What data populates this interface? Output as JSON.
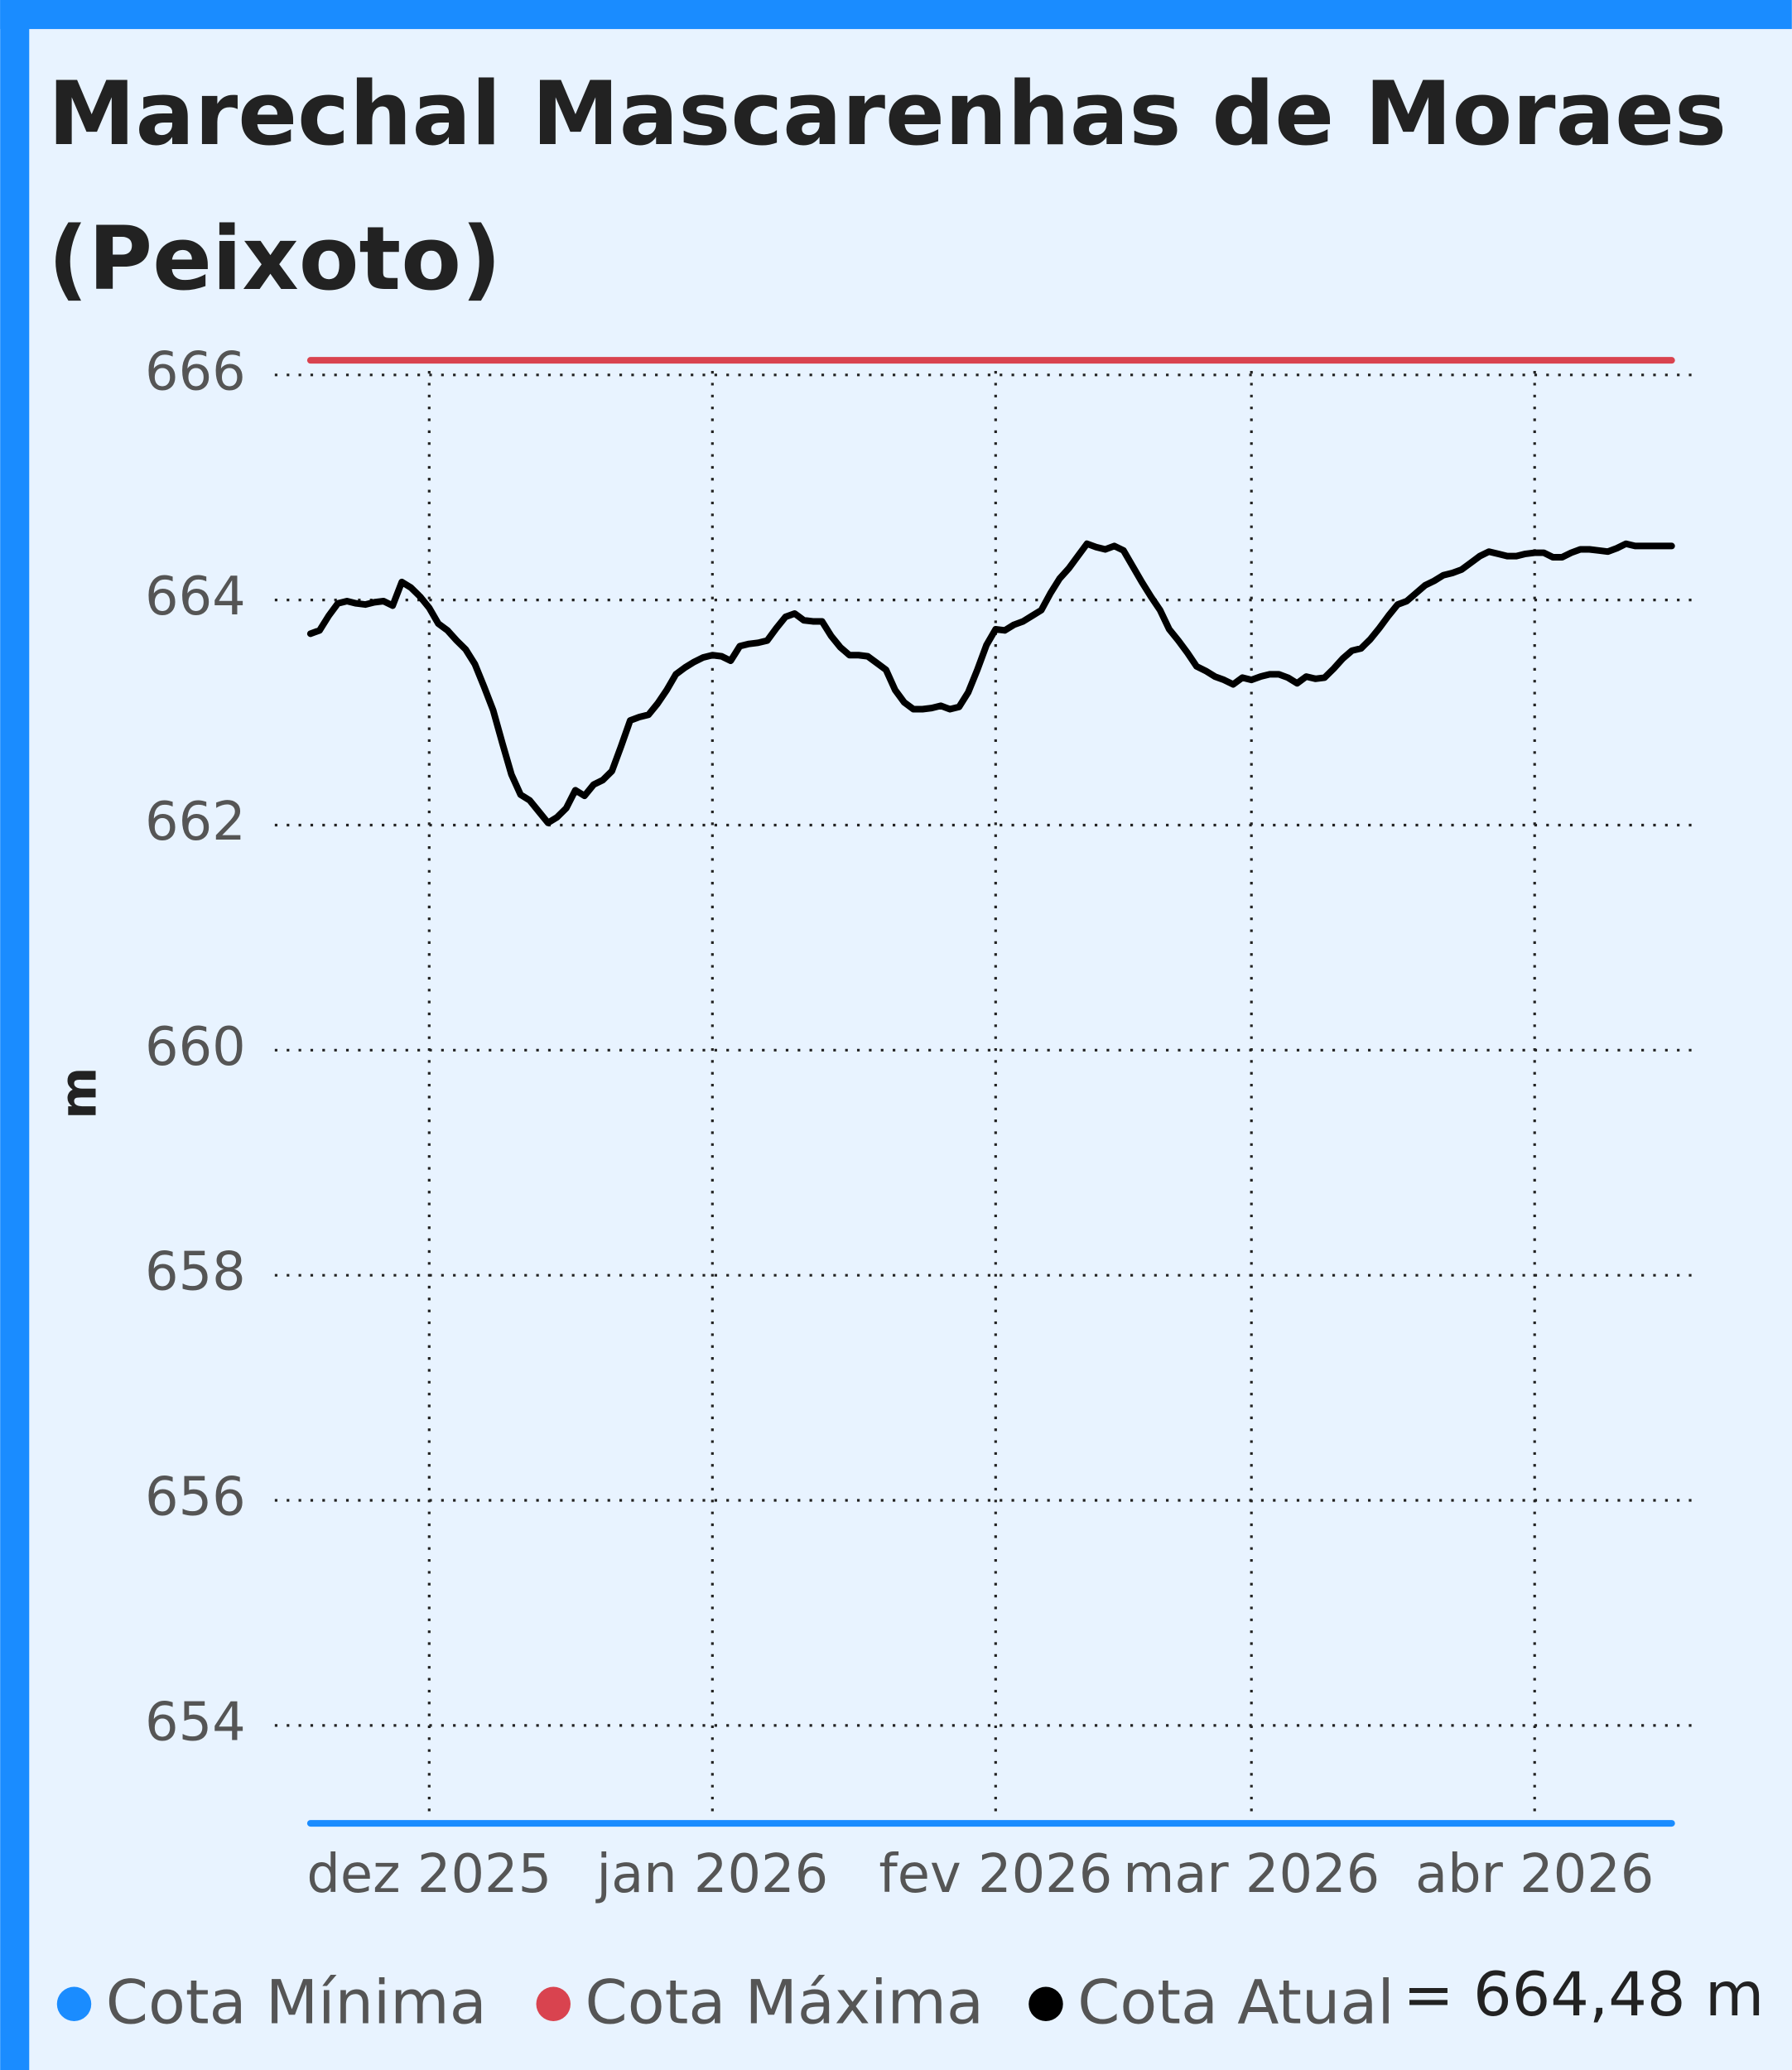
{
  "chart_data": {
    "type": "line",
    "title": "Marechal Mascarenhas de Moraes (Peixoto)",
    "y_label": "m",
    "annotation": "= 664,48 m",
    "categories": [
      null,
      null,
      null,
      null,
      null,
      null,
      null,
      null,
      null,
      null,
      null,
      null,
      null,
      "dez 2025",
      null,
      null,
      null,
      null,
      null,
      null,
      null,
      null,
      null,
      null,
      null,
      null,
      null,
      null,
      null,
      null,
      null,
      null,
      null,
      null,
      null,
      null,
      null,
      null,
      null,
      null,
      null,
      null,
      null,
      null,
      "jan 2026",
      null,
      null,
      null,
      null,
      null,
      null,
      null,
      null,
      null,
      null,
      null,
      null,
      null,
      null,
      null,
      null,
      null,
      null,
      null,
      null,
      null,
      null,
      null,
      null,
      null,
      null,
      null,
      null,
      null,
      null,
      "fev 2026",
      null,
      null,
      null,
      null,
      null,
      null,
      null,
      null,
      null,
      null,
      null,
      null,
      null,
      null,
      null,
      null,
      null,
      null,
      null,
      null,
      null,
      null,
      null,
      null,
      null,
      null,
      null,
      "mar 2026",
      null,
      null,
      null,
      null,
      null,
      null,
      null,
      null,
      null,
      null,
      null,
      null,
      null,
      null,
      null,
      null,
      null,
      null,
      null,
      null,
      null,
      null,
      null,
      null,
      null,
      null,
      null,
      null,
      null,
      null,
      "abr 2026",
      null,
      null,
      null,
      null,
      null,
      null,
      null,
      null,
      null,
      null,
      null,
      null,
      null,
      null,
      null
    ],
    "reference_lines": [
      {
        "name": "Cota Mínima",
        "color": "#1a8cff",
        "value": 653.13
      },
      {
        "name": "Cota Máxima",
        "color": "#d9434f",
        "value": 666.13
      }
    ],
    "series": [
      {
        "name": "Cota Atual",
        "color": "#000000",
        "values": [
          663.7,
          663.73,
          663.86,
          663.97,
          663.99,
          663.97,
          663.96,
          663.98,
          663.99,
          663.95,
          664.16,
          664.11,
          664.03,
          663.93,
          663.79,
          663.73,
          663.64,
          663.56,
          663.43,
          663.23,
          663.02,
          662.73,
          662.45,
          662.27,
          662.22,
          662.12,
          662.02,
          662.07,
          662.15,
          662.31,
          662.26,
          662.36,
          662.4,
          662.48,
          662.7,
          662.93,
          662.96,
          662.98,
          663.08,
          663.2,
          663.34,
          663.4,
          663.45,
          663.49,
          663.51,
          663.5,
          663.46,
          663.59,
          663.61,
          663.62,
          663.64,
          663.75,
          663.85,
          663.88,
          663.82,
          663.81,
          663.81,
          663.68,
          663.58,
          663.51,
          663.51,
          663.5,
          663.44,
          663.38,
          663.2,
          663.09,
          663.03,
          663.03,
          663.04,
          663.06,
          663.03,
          663.05,
          663.18,
          663.38,
          663.6,
          663.74,
          663.73,
          663.78,
          663.81,
          663.86,
          663.91,
          664.06,
          664.19,
          664.28,
          664.39,
          664.5,
          664.47,
          664.45,
          664.48,
          664.44,
          664.3,
          664.16,
          664.03,
          663.91,
          663.74,
          663.64,
          663.53,
          663.41,
          663.37,
          663.32,
          663.29,
          663.25,
          663.31,
          663.29,
          663.32,
          663.34,
          663.34,
          663.31,
          663.26,
          663.32,
          663.3,
          663.31,
          663.39,
          663.48,
          663.55,
          663.57,
          663.65,
          663.75,
          663.86,
          663.96,
          663.99,
          664.06,
          664.13,
          664.17,
          664.22,
          664.24,
          664.27,
          664.33,
          664.39,
          664.43,
          664.41,
          664.39,
          664.39,
          664.41,
          664.42,
          664.42,
          664.38,
          664.38,
          664.42,
          664.45,
          664.45,
          664.44,
          664.43,
          664.46,
          664.5,
          664.48,
          664.48,
          664.48,
          664.48,
          664.48
        ]
      }
    ],
    "ylim": [
      653.0,
      666.2
    ],
    "yticks": [
      654,
      656,
      658,
      660,
      662,
      664,
      666
    ],
    "grid": true
  }
}
